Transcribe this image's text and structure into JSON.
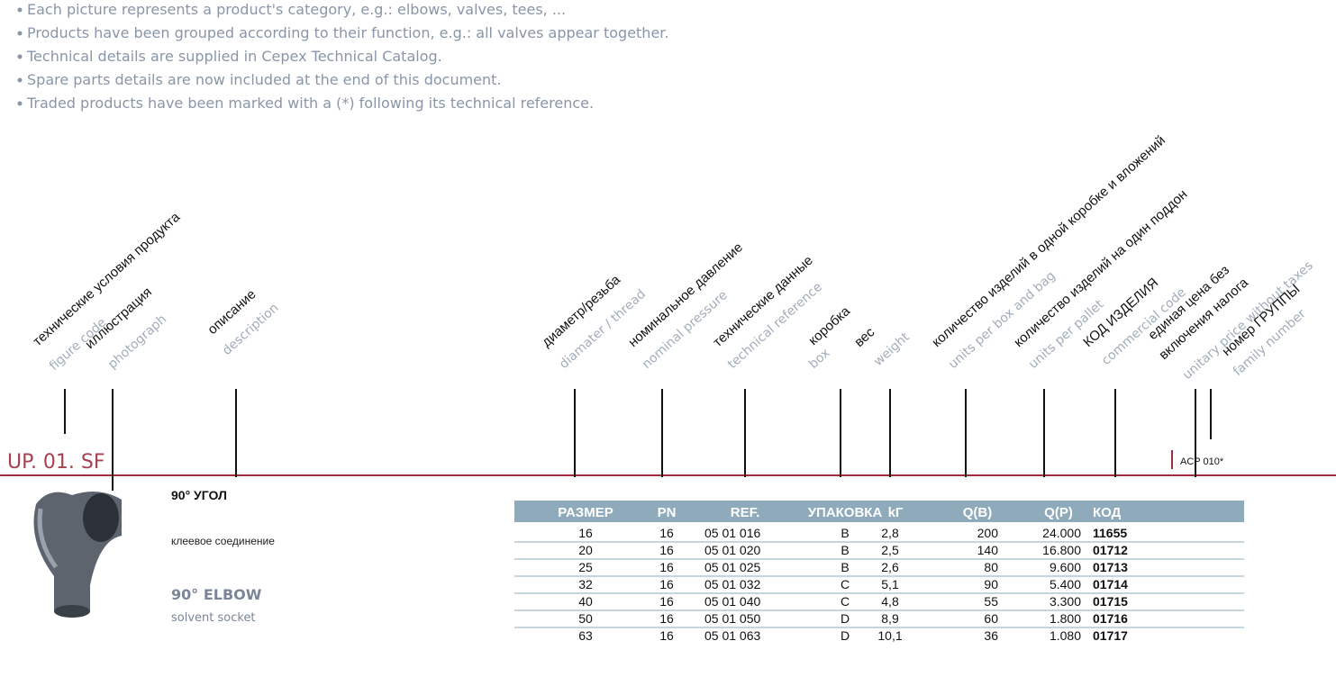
{
  "bullets": [
    "Each picture represents a product's category, e.g.: elbows, valves, tees, ...",
    "Products have been grouped according to their function, e.g.: all valves appear together.",
    "Technical details are supplied in Cepex Technical Catalog.",
    "Spare parts details are now included at the end of this document.",
    "Traded products have been marked with a (*) following its technical reference."
  ],
  "columns": [
    {
      "ru": "технические условия продукта",
      "en": "figure code"
    },
    {
      "ru": "иллюстрация",
      "en": "photograph"
    },
    {
      "ru": "описание",
      "en": "description"
    },
    {
      "ru": "диаметр/резьба",
      "en": "diamater / thread"
    },
    {
      "ru": "номинальное давление",
      "en": "nominal pressure"
    },
    {
      "ru": "технические данные",
      "en": "technical reference"
    },
    {
      "ru": "коробка",
      "en": "box"
    },
    {
      "ru": "вес",
      "en": "weight"
    },
    {
      "ru": "количество изделий в одной коробке и вложений",
      "en": "units per box and bag"
    },
    {
      "ru": "количество изделий на один поддон",
      "en": "units per pallet"
    },
    {
      "ru": "КОД ИЗДЕЛИЯ",
      "en": "commercial code"
    },
    {
      "ru": "единая цена без",
      "ru2": "включения налога",
      "en": "unitary price without taxes"
    },
    {
      "ru": "номер ГРУППЫ",
      "en": "family number"
    }
  ],
  "figure_code": "UP. 01. SF",
  "family_number": "ACP 010*",
  "product": {
    "title_ru": "90° УГОЛ",
    "desc_ru": "клеевое соединение",
    "title_en": "90° ELBOW",
    "desc_en": "solvent socket"
  },
  "table": {
    "headers": [
      "РАЗМЕР",
      "PN",
      "REF.",
      "УПАКОВКА",
      "kГ",
      "Q(B)",
      "Q(P)",
      "КОД"
    ],
    "rows": [
      [
        "16",
        "16",
        "05 01 016",
        "B",
        "2,8",
        "200",
        "24.000",
        "11655"
      ],
      [
        "20",
        "16",
        "05 01 020",
        "B",
        "2,5",
        "140",
        "16.800",
        "01712"
      ],
      [
        "25",
        "16",
        "05 01 025",
        "B",
        "2,6",
        "80",
        "9.600",
        "01713"
      ],
      [
        "32",
        "16",
        "05 01 032",
        "C",
        "5,1",
        "90",
        "5.400",
        "01714"
      ],
      [
        "40",
        "16",
        "05 01 040",
        "C",
        "4,8",
        "55",
        "3.300",
        "01715"
      ],
      [
        "50",
        "16",
        "05 01 050",
        "D",
        "8,9",
        "60",
        "1.800",
        "01716"
      ],
      [
        "63",
        "16",
        "05 01 063",
        "D",
        "10,1",
        "36",
        "1.080",
        "01717"
      ]
    ]
  }
}
